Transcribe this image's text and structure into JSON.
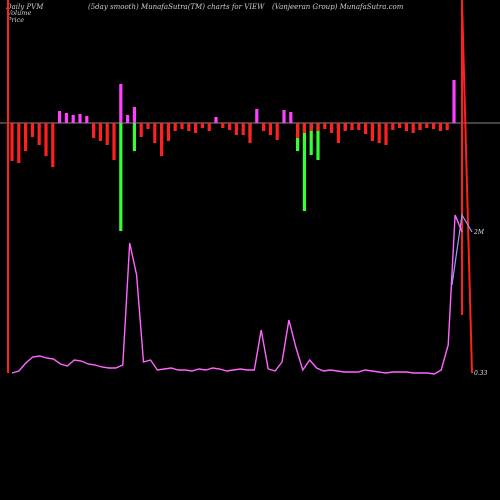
{
  "header": {
    "left": "Daily PVM",
    "center": "(5day smooth) MunafaSutra(TM) charts for VIEW",
    "right": "(Vanjeeran Group) MunafaSutra.com"
  },
  "legend": {
    "volume": "Volume",
    "price": "Price"
  },
  "chart_data": {
    "type": "bar",
    "title": "(5day smooth) MunafaSutra(TM) charts for VIEW",
    "volume_label": "2M",
    "price_label": "0.33",
    "colors": {
      "up": "#ff40ff",
      "down": "#ff2020",
      "volume": "#33ff33",
      "price_line": "#ff66ff",
      "center_line": "#888888",
      "price_axis_line": "#9999ff"
    },
    "pvm_bars": [
      -38,
      -40,
      -28,
      -14,
      -22,
      -33,
      -44,
      12,
      10,
      8,
      9,
      7,
      -15,
      -18,
      -22,
      -37,
      39,
      8,
      16,
      -14,
      -6,
      -20,
      -33,
      -18,
      -8,
      -6,
      -8,
      -10,
      -5,
      -8,
      6,
      -5,
      -7,
      -12,
      -12,
      -20,
      14,
      -8,
      -12,
      -17,
      13,
      11,
      -15,
      -10,
      -8,
      -8,
      -6,
      -10,
      -20,
      -8,
      -7,
      -7,
      -11,
      -18,
      -20,
      -22,
      -7,
      -5,
      -8,
      -10,
      -7,
      -5,
      -6,
      -8,
      -7,
      43
    ],
    "volume_bars": [
      0,
      0,
      0,
      0,
      0,
      0,
      0,
      0,
      0,
      0,
      0,
      0,
      0,
      0,
      0,
      0,
      108,
      0,
      28,
      0,
      0,
      0,
      0,
      0,
      0,
      0,
      0,
      0,
      0,
      0,
      0,
      0,
      0,
      0,
      0,
      14,
      0,
      0,
      0,
      0,
      0,
      0,
      28,
      88,
      32,
      37,
      0,
      0,
      5,
      7,
      0,
      0,
      0,
      0,
      0,
      0,
      0,
      0,
      0,
      0,
      6,
      0,
      0,
      0,
      0,
      0
    ],
    "price_line": [
      373,
      371,
      363,
      357,
      356,
      358,
      359,
      364,
      366,
      360,
      361,
      364,
      365,
      367,
      368,
      368,
      365,
      243,
      275,
      362,
      360,
      370,
      369,
      368,
      370,
      370,
      371,
      369,
      370,
      368,
      369,
      371,
      370,
      369,
      370,
      370,
      330,
      369,
      371,
      362,
      320,
      347,
      370,
      360,
      368,
      371,
      370,
      371,
      372,
      372,
      372,
      370,
      371,
      372,
      373,
      372,
      372,
      372,
      373,
      373,
      373,
      374,
      370,
      345,
      215,
      232
    ]
  }
}
